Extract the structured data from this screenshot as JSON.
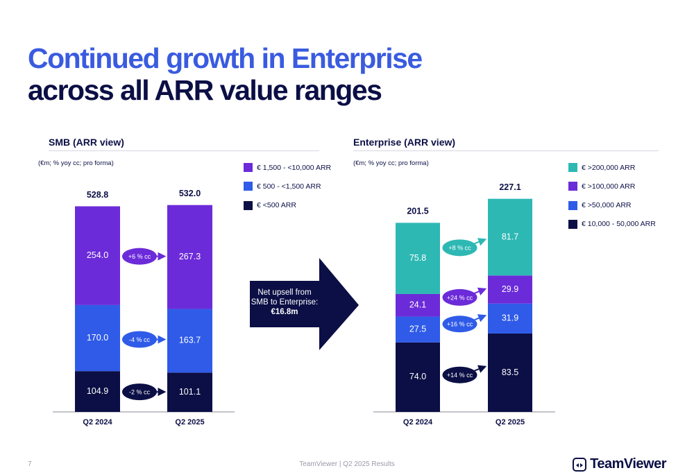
{
  "title_line1": "Continued growth in Enterprise",
  "title_line2": "across all ARR value ranges",
  "big_arrow": {
    "line1": "Net upsell from",
    "line2": "SMB to Enterprise:",
    "value": "€16.8m"
  },
  "footer": {
    "page": "7",
    "center": "TeamViewer | Q2 2025 Results",
    "brand": "TeamViewer"
  },
  "colors": {
    "purple": "#6c2bd9",
    "blue": "#2f5be8",
    "navy": "#0b0f45",
    "teal": "#2eb8b4",
    "title_blue": "#3a5be0"
  },
  "chart_data": [
    {
      "type": "bar",
      "stacked": true,
      "title": "SMB (ARR view)",
      "note": "(€m; % yoy cc; pro forma)",
      "categories": [
        "Q2 2024",
        "Q2 2025"
      ],
      "totals": [
        "528.8",
        "532.0"
      ],
      "series": [
        {
          "name": "€ <500 ARR",
          "color": "#0b0f45",
          "values": [
            104.9,
            101.1
          ],
          "change": "-2 % cc"
        },
        {
          "name": "€ 500 - <1,500 ARR",
          "color": "#2f5be8",
          "values": [
            170.0,
            163.7
          ],
          "change": "-4 % cc"
        },
        {
          "name": "€ 1,500 - <10,000 ARR",
          "color": "#6c2bd9",
          "values": [
            254.0,
            267.3
          ],
          "change": "+6 % cc"
        }
      ],
      "legend": [
        "€ 1,500 - <10,000 ARR",
        "€ 500 - <1,500 ARR",
        "€ <500 ARR"
      ],
      "legend_colors": [
        "#6c2bd9",
        "#2f5be8",
        "#0b0f45"
      ]
    },
    {
      "type": "bar",
      "stacked": true,
      "title": "Enterprise (ARR view)",
      "note": "(€m; % yoy cc; pro forma)",
      "categories": [
        "Q2 2024",
        "Q2 2025"
      ],
      "totals": [
        "201.5",
        "227.1"
      ],
      "series": [
        {
          "name": "€ 10,000 - 50,000 ARR",
          "color": "#0b0f45",
          "values": [
            74.0,
            83.5
          ],
          "change": "+14 % cc"
        },
        {
          "name": "€ >50,000 ARR",
          "color": "#2f5be8",
          "values": [
            27.5,
            31.9
          ],
          "change": "+16 % cc"
        },
        {
          "name": "€ >100,000 ARR",
          "color": "#6c2bd9",
          "values": [
            24.1,
            29.9
          ],
          "change": "+24 % cc"
        },
        {
          "name": "€ >200,000 ARR",
          "color": "#2eb8b4",
          "values": [
            75.8,
            81.7
          ],
          "change": "+8 % cc"
        }
      ],
      "legend": [
        "€ >200,000 ARR",
        "€ >100,000 ARR",
        "€ >50,000 ARR",
        "€ 10,000 - 50,000 ARR"
      ],
      "legend_colors": [
        "#2eb8b4",
        "#6c2bd9",
        "#2f5be8",
        "#0b0f45"
      ]
    }
  ]
}
